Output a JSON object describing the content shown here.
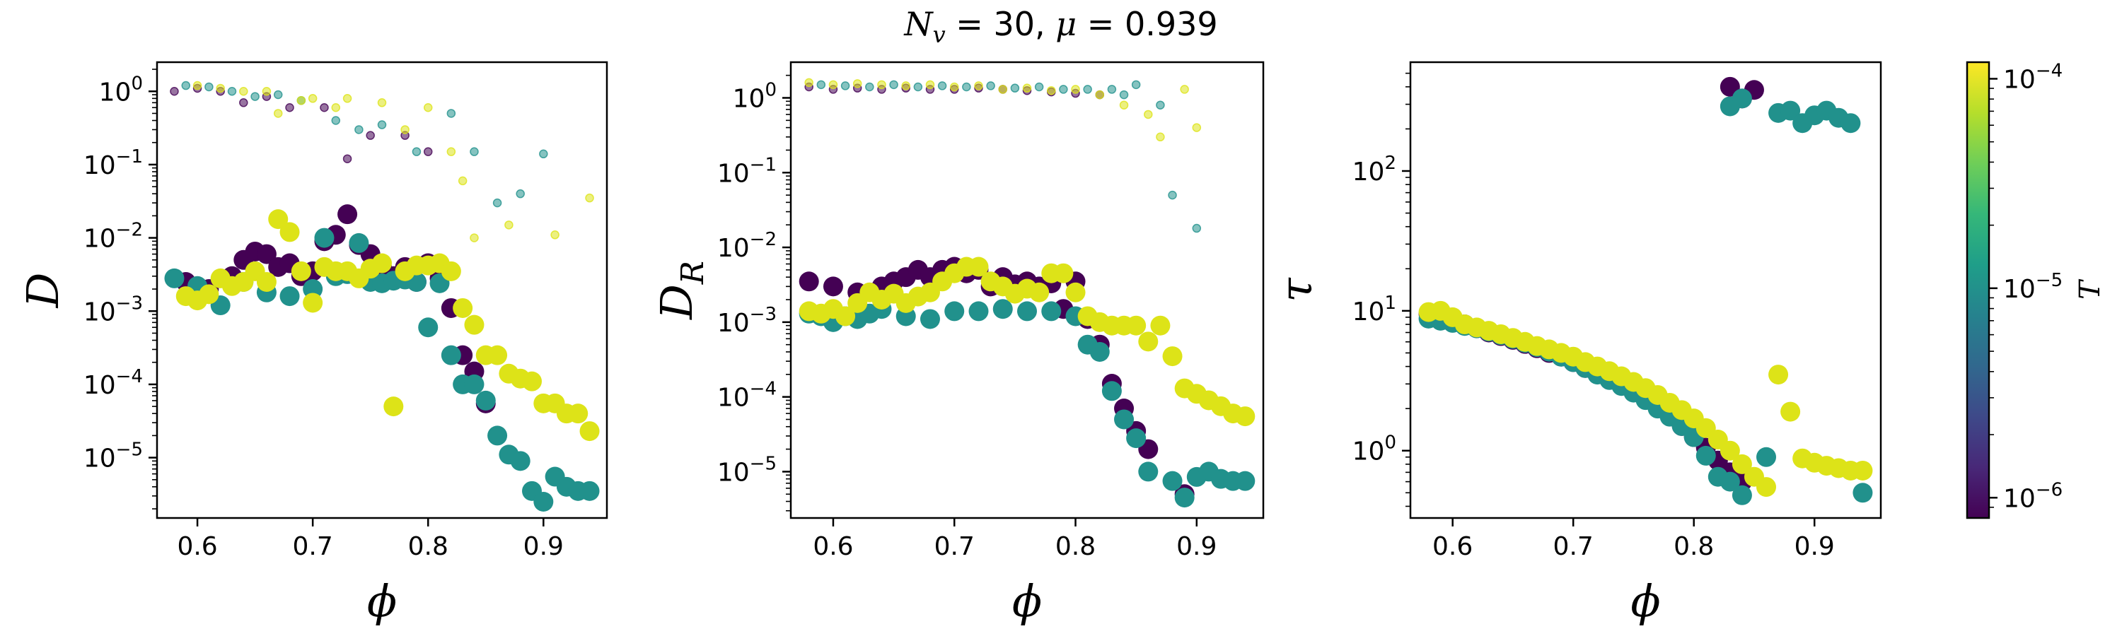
{
  "title": {
    "prefix": "N",
    "sub": "v",
    "rest": " = 30, ",
    "mu": "μ",
    "tail": " = 0.939"
  },
  "colors": {
    "low": "#440154",
    "mid": "#21918c",
    "high": "#dde318"
  },
  "colorbar": {
    "label": "T",
    "scale": "log",
    "range": [
      8e-07,
      0.00012
    ],
    "colormap": "viridis",
    "ticks": [
      {
        "base": "10",
        "exp": "−6",
        "value": 1e-06
      },
      {
        "base": "10",
        "exp": "−5",
        "value": 1e-05
      },
      {
        "base": "10",
        "exp": "−4",
        "value": 0.0001
      }
    ]
  },
  "chart_data": [
    {
      "type": "scatter",
      "ylabel": "D",
      "ylabel_sub": "",
      "xlabel": "ϕ",
      "xscale": "linear",
      "yscale": "log",
      "xlim": [
        0.565,
        0.955
      ],
      "ylim": [
        1.5e-06,
        2.5
      ],
      "xticks": [
        "0.6",
        "0.7",
        "0.8",
        "0.9"
      ],
      "yticks": [
        {
          "base": "10",
          "exp": "−5",
          "value": 1e-05
        },
        {
          "base": "10",
          "exp": "−4",
          "value": 0.0001
        },
        {
          "base": "10",
          "exp": "−3",
          "value": 0.001
        },
        {
          "base": "10",
          "exp": "−2",
          "value": 0.01
        },
        {
          "base": "10",
          "exp": "−1",
          "value": 0.1
        },
        {
          "base": "10",
          "exp": "0",
          "value": 1
        }
      ],
      "series": [
        {
          "color_key": "low",
          "marker": "large",
          "x": [
            0.59,
            0.61,
            0.63,
            0.64,
            0.65,
            0.66,
            0.67,
            0.68,
            0.69,
            0.7,
            0.71,
            0.72,
            0.73,
            0.74,
            0.75,
            0.76,
            0.77,
            0.78,
            0.79,
            0.8,
            0.81,
            0.82,
            0.83,
            0.84,
            0.85
          ],
          "y": [
            0.0025,
            0.002,
            0.003,
            0.005,
            0.0065,
            0.006,
            0.004,
            0.0045,
            0.003,
            0.0035,
            0.009,
            0.011,
            0.021,
            0.008,
            0.006,
            0.004,
            0.003,
            0.004,
            0.0025,
            0.0045,
            0.0028,
            0.0011,
            0.00025,
            0.00015,
            5.5e-05
          ]
        },
        {
          "color_key": "mid",
          "marker": "large",
          "x": [
            0.58,
            0.6,
            0.62,
            0.64,
            0.66,
            0.68,
            0.7,
            0.71,
            0.72,
            0.73,
            0.74,
            0.75,
            0.76,
            0.77,
            0.78,
            0.79,
            0.8,
            0.81,
            0.82,
            0.83,
            0.84,
            0.85,
            0.86,
            0.87,
            0.88,
            0.89,
            0.9,
            0.91,
            0.92,
            0.93,
            0.94
          ],
          "y": [
            0.0028,
            0.0022,
            0.0012,
            0.0025,
            0.0018,
            0.0016,
            0.002,
            0.01,
            0.003,
            0.0032,
            0.0085,
            0.0025,
            0.0024,
            0.0026,
            0.0027,
            0.0025,
            0.0006,
            0.0024,
            0.00025,
            0.0001,
            0.0001,
            6e-05,
            2e-05,
            1.1e-05,
            9e-06,
            3.5e-06,
            2.5e-06,
            5.5e-06,
            4e-06,
            3.5e-06,
            3.5e-06
          ]
        },
        {
          "color_key": "high",
          "marker": "large",
          "x": [
            0.59,
            0.6,
            0.61,
            0.62,
            0.63,
            0.64,
            0.65,
            0.66,
            0.67,
            0.68,
            0.69,
            0.7,
            0.71,
            0.72,
            0.73,
            0.74,
            0.75,
            0.76,
            0.77,
            0.78,
            0.79,
            0.8,
            0.81,
            0.82,
            0.83,
            0.84,
            0.85,
            0.86,
            0.87,
            0.88,
            0.89,
            0.9,
            0.91,
            0.92,
            0.93,
            0.94
          ],
          "y": [
            0.0016,
            0.0014,
            0.0017,
            0.0028,
            0.0022,
            0.0025,
            0.0035,
            0.0025,
            0.018,
            0.012,
            0.0035,
            0.0013,
            0.004,
            0.0035,
            0.0035,
            0.0028,
            0.0038,
            0.0045,
            5e-05,
            0.0035,
            0.0042,
            0.0042,
            0.0045,
            0.0035,
            0.0011,
            0.00065,
            0.00025,
            0.00025,
            0.00014,
            0.00012,
            0.00011,
            5.5e-05,
            5.5e-05,
            4e-05,
            4e-05,
            2.3e-05
          ]
        },
        {
          "color_key": "low",
          "marker": "small",
          "x": [
            0.58,
            0.6,
            0.62,
            0.64,
            0.66,
            0.68,
            0.71,
            0.73,
            0.75,
            0.78,
            0.8
          ],
          "y": [
            1.0,
            1.1,
            1.0,
            0.7,
            0.85,
            0.6,
            0.6,
            0.12,
            0.25,
            0.25,
            0.15
          ]
        },
        {
          "color_key": "mid",
          "marker": "small",
          "x": [
            0.59,
            0.61,
            0.63,
            0.65,
            0.67,
            0.69,
            0.72,
            0.74,
            0.76,
            0.79,
            0.82,
            0.84,
            0.86,
            0.88,
            0.9
          ],
          "y": [
            1.2,
            1.15,
            1.0,
            0.85,
            0.9,
            0.75,
            0.4,
            0.3,
            0.35,
            0.15,
            0.5,
            0.15,
            0.03,
            0.04,
            0.14
          ]
        },
        {
          "color_key": "high",
          "marker": "small",
          "x": [
            0.6,
            0.62,
            0.64,
            0.66,
            0.67,
            0.69,
            0.7,
            0.72,
            0.73,
            0.76,
            0.78,
            0.8,
            0.82,
            0.83,
            0.84,
            0.87,
            0.91,
            0.94
          ],
          "y": [
            1.2,
            1.1,
            1.0,
            1.0,
            0.5,
            0.75,
            0.8,
            0.6,
            0.8,
            0.7,
            0.3,
            0.6,
            0.15,
            0.06,
            0.01,
            0.015,
            0.011,
            0.035
          ]
        }
      ]
    },
    {
      "type": "scatter",
      "ylabel": "D",
      "ylabel_sub": "R",
      "xlabel": "ϕ",
      "xscale": "linear",
      "yscale": "log",
      "xlim": [
        0.565,
        0.955
      ],
      "ylim": [
        2.4e-06,
        3.0
      ],
      "xticks": [
        "0.6",
        "0.7",
        "0.8",
        "0.9"
      ],
      "yticks": [
        {
          "base": "10",
          "exp": "−5",
          "value": 1e-05
        },
        {
          "base": "10",
          "exp": "−4",
          "value": 0.0001
        },
        {
          "base": "10",
          "exp": "−3",
          "value": 0.001
        },
        {
          "base": "10",
          "exp": "−2",
          "value": 0.01
        },
        {
          "base": "10",
          "exp": "−1",
          "value": 0.1
        },
        {
          "base": "10",
          "exp": "0",
          "value": 1
        }
      ],
      "series": [
        {
          "color_key": "low",
          "marker": "large",
          "x": [
            0.58,
            0.6,
            0.62,
            0.64,
            0.65,
            0.66,
            0.67,
            0.68,
            0.69,
            0.7,
            0.71,
            0.72,
            0.73,
            0.74,
            0.75,
            0.76,
            0.77,
            0.78,
            0.79,
            0.8,
            0.81,
            0.82,
            0.83,
            0.84,
            0.85,
            0.86,
            0.89
          ],
          "y": [
            0.0035,
            0.003,
            0.0025,
            0.003,
            0.0035,
            0.004,
            0.005,
            0.004,
            0.005,
            0.0055,
            0.0045,
            0.005,
            0.003,
            0.004,
            0.0032,
            0.0035,
            0.003,
            0.0033,
            0.0015,
            0.0035,
            0.0011,
            0.0005,
            0.00015,
            7e-05,
            3.5e-05,
            2e-05,
            5e-06
          ]
        },
        {
          "color_key": "mid",
          "marker": "large",
          "x": [
            0.58,
            0.59,
            0.6,
            0.61,
            0.62,
            0.63,
            0.64,
            0.66,
            0.68,
            0.7,
            0.72,
            0.74,
            0.76,
            0.78,
            0.8,
            0.81,
            0.82,
            0.83,
            0.84,
            0.85,
            0.86,
            0.88,
            0.89,
            0.9,
            0.91,
            0.92,
            0.93,
            0.94
          ],
          "y": [
            0.0013,
            0.0012,
            0.001,
            0.0012,
            0.0011,
            0.0013,
            0.0015,
            0.0012,
            0.0011,
            0.0014,
            0.0014,
            0.0015,
            0.0014,
            0.0014,
            0.0012,
            0.0005,
            0.0004,
            0.00012,
            5e-05,
            2.8e-05,
            1e-05,
            7.5e-06,
            4.5e-06,
            8.5e-06,
            1e-05,
            8e-06,
            7.5e-06,
            7.5e-06
          ]
        },
        {
          "color_key": "high",
          "marker": "large",
          "x": [
            0.58,
            0.59,
            0.6,
            0.61,
            0.62,
            0.63,
            0.64,
            0.65,
            0.66,
            0.67,
            0.68,
            0.69,
            0.7,
            0.71,
            0.72,
            0.73,
            0.74,
            0.75,
            0.76,
            0.77,
            0.78,
            0.79,
            0.8,
            0.81,
            0.82,
            0.83,
            0.84,
            0.85,
            0.86,
            0.87,
            0.88,
            0.89,
            0.9,
            0.91,
            0.92,
            0.93,
            0.94
          ],
          "y": [
            0.0014,
            0.0013,
            0.0015,
            0.0012,
            0.0018,
            0.0025,
            0.002,
            0.0024,
            0.0018,
            0.0022,
            0.0025,
            0.0035,
            0.0045,
            0.0055,
            0.0055,
            0.0035,
            0.003,
            0.0024,
            0.0028,
            0.0025,
            0.0045,
            0.0045,
            0.0025,
            0.0012,
            0.001,
            0.0009,
            0.0009,
            0.0009,
            0.00055,
            0.0009,
            0.00035,
            0.00013,
            0.00011,
            9e-05,
            7.5e-05,
            6e-05,
            5.5e-05
          ]
        },
        {
          "color_key": "low",
          "marker": "small",
          "x": [
            0.58,
            0.6,
            0.62,
            0.64,
            0.66,
            0.68,
            0.7,
            0.72,
            0.74,
            0.76,
            0.78,
            0.8,
            0.82
          ],
          "y": [
            1.4,
            1.3,
            1.35,
            1.3,
            1.35,
            1.3,
            1.3,
            1.35,
            1.3,
            1.25,
            1.2,
            1.15,
            1.1
          ]
        },
        {
          "color_key": "mid",
          "marker": "small",
          "x": [
            0.59,
            0.61,
            0.63,
            0.65,
            0.67,
            0.69,
            0.71,
            0.73,
            0.75,
            0.77,
            0.79,
            0.81,
            0.83,
            0.84,
            0.85,
            0.87,
            0.88,
            0.9
          ],
          "y": [
            1.5,
            1.45,
            1.4,
            1.5,
            1.4,
            1.45,
            1.4,
            1.45,
            1.35,
            1.4,
            1.3,
            1.3,
            1.3,
            1.1,
            1.5,
            0.8,
            0.05,
            0.018
          ]
        },
        {
          "color_key": "high",
          "marker": "small",
          "x": [
            0.58,
            0.6,
            0.62,
            0.64,
            0.66,
            0.68,
            0.7,
            0.72,
            0.74,
            0.76,
            0.78,
            0.8,
            0.82,
            0.84,
            0.86,
            0.87,
            0.89,
            0.9
          ],
          "y": [
            1.6,
            1.5,
            1.55,
            1.5,
            1.45,
            1.5,
            1.4,
            1.45,
            1.3,
            1.35,
            1.25,
            1.3,
            1.1,
            0.8,
            0.6,
            0.3,
            1.3,
            0.4
          ]
        }
      ]
    },
    {
      "type": "scatter",
      "ylabel": "τ",
      "ylabel_sub": "",
      "xlabel": "ϕ",
      "xscale": "linear",
      "yscale": "log",
      "xlim": [
        0.565,
        0.955
      ],
      "ylim": [
        0.33,
        600
      ],
      "xticks": [
        "0.6",
        "0.7",
        "0.8",
        "0.9"
      ],
      "yticks": [
        {
          "base": "10",
          "exp": "0",
          "value": 1
        },
        {
          "base": "10",
          "exp": "1",
          "value": 10
        },
        {
          "base": "10",
          "exp": "2",
          "value": 100
        }
      ],
      "series": [
        {
          "color_key": "low",
          "marker": "large",
          "x": [
            0.58,
            0.59,
            0.6,
            0.61,
            0.62,
            0.63,
            0.64,
            0.65,
            0.66,
            0.67,
            0.68,
            0.69,
            0.7,
            0.71,
            0.72,
            0.73,
            0.74,
            0.75,
            0.76,
            0.77,
            0.78,
            0.79,
            0.8,
            0.81,
            0.82,
            0.83,
            0.84,
            0.83,
            0.84,
            0.85
          ],
          "y": [
            9.5,
            9.2,
            8.5,
            8.0,
            7.5,
            7.0,
            6.6,
            6.2,
            5.8,
            5.4,
            5.0,
            4.7,
            4.3,
            3.9,
            3.6,
            3.3,
            3.0,
            2.7,
            2.4,
            2.1,
            1.8,
            1.5,
            1.25,
            1.05,
            0.85,
            0.7,
            0.6,
            400,
            330,
            380
          ]
        },
        {
          "color_key": "mid",
          "marker": "large",
          "x": [
            0.58,
            0.59,
            0.6,
            0.61,
            0.62,
            0.63,
            0.64,
            0.65,
            0.66,
            0.67,
            0.68,
            0.69,
            0.7,
            0.71,
            0.72,
            0.73,
            0.74,
            0.75,
            0.76,
            0.77,
            0.78,
            0.79,
            0.8,
            0.81,
            0.82,
            0.83,
            0.84,
            0.86,
            0.94,
            0.83,
            0.84,
            0.87,
            0.88,
            0.89,
            0.9,
            0.91,
            0.92,
            0.93
          ],
          "y": [
            8.8,
            8.5,
            8.2,
            7.8,
            7.5,
            7.1,
            6.7,
            6.3,
            5.9,
            5.5,
            5.1,
            4.7,
            4.3,
            3.9,
            3.5,
            3.2,
            2.9,
            2.6,
            2.3,
            2.0,
            1.75,
            1.5,
            1.25,
            0.92,
            0.65,
            0.6,
            0.48,
            0.9,
            0.5,
            290,
            330,
            260,
            270,
            220,
            250,
            270,
            240,
            220
          ]
        },
        {
          "color_key": "high",
          "marker": "large",
          "x": [
            0.58,
            0.59,
            0.6,
            0.61,
            0.62,
            0.63,
            0.64,
            0.65,
            0.66,
            0.67,
            0.68,
            0.69,
            0.7,
            0.71,
            0.72,
            0.73,
            0.74,
            0.75,
            0.76,
            0.77,
            0.78,
            0.79,
            0.8,
            0.81,
            0.82,
            0.83,
            0.84,
            0.85,
            0.86,
            0.87,
            0.88,
            0.89,
            0.9,
            0.91,
            0.92,
            0.93,
            0.94
          ],
          "y": [
            9.8,
            10.0,
            9.0,
            8.0,
            7.6,
            7.2,
            6.8,
            6.4,
            6.0,
            5.6,
            5.3,
            5.0,
            4.7,
            4.3,
            4.0,
            3.7,
            3.4,
            3.1,
            2.8,
            2.5,
            2.2,
            1.95,
            1.7,
            1.45,
            1.2,
            1.0,
            0.8,
            0.65,
            0.55,
            3.5,
            1.9,
            0.88,
            0.82,
            0.78,
            0.75,
            0.72,
            0.72
          ]
        }
      ]
    }
  ]
}
